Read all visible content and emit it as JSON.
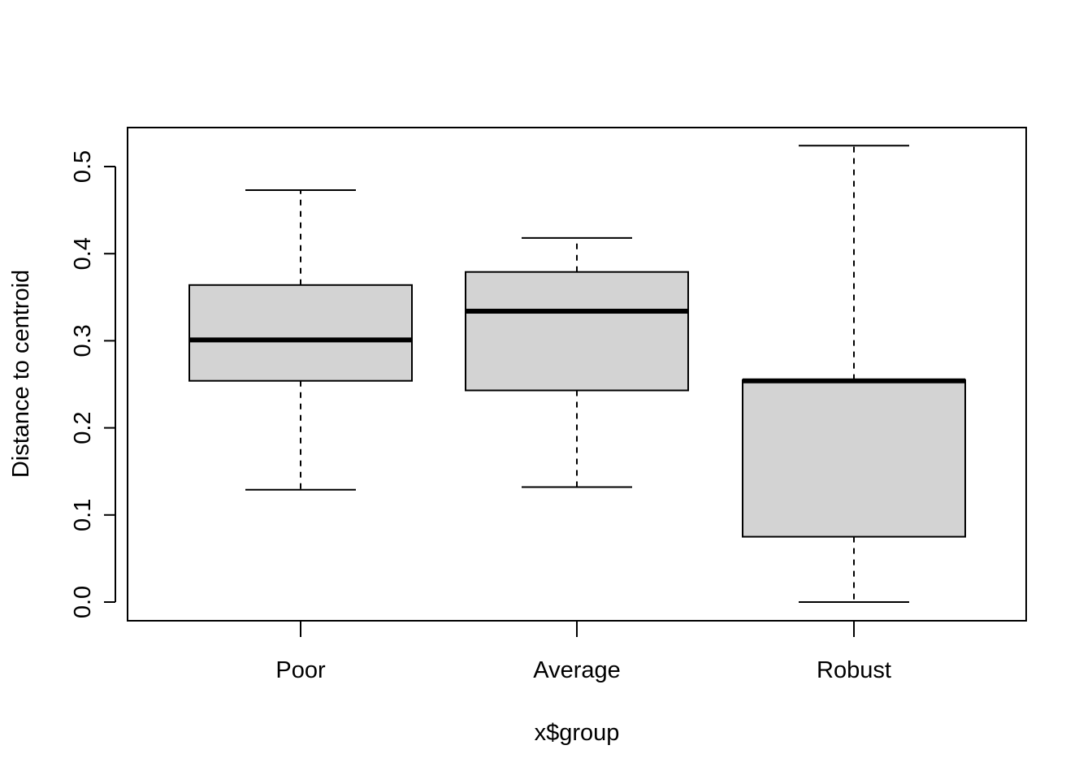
{
  "chart_data": {
    "type": "box",
    "title": "",
    "xlabel": "x$group",
    "ylabel": "Distance to centroid",
    "ylim": [
      -0.021,
      0.545
    ],
    "yticks": [
      "0.0",
      "0.1",
      "0.2",
      "0.3",
      "0.4",
      "0.5"
    ],
    "ytick_values": [
      0.0,
      0.1,
      0.2,
      0.3,
      0.4,
      0.5
    ],
    "grid": false,
    "legend": "none",
    "box_fill": "#d3d3d3",
    "line_color": "#000000",
    "categories": [
      "Poor",
      "Average",
      "Robust"
    ],
    "boxes": [
      {
        "category": "Poor",
        "whisker_low": 0.129,
        "q1": 0.254,
        "median": 0.301,
        "q3": 0.364,
        "whisker_high": 0.473
      },
      {
        "category": "Average",
        "whisker_low": 0.132,
        "q1": 0.243,
        "median": 0.334,
        "q3": 0.379,
        "whisker_high": 0.418
      },
      {
        "category": "Robust",
        "whisker_low": 0.0,
        "q1": 0.075,
        "median": 0.254,
        "q3": 0.255,
        "whisker_high": 0.524
      }
    ]
  }
}
